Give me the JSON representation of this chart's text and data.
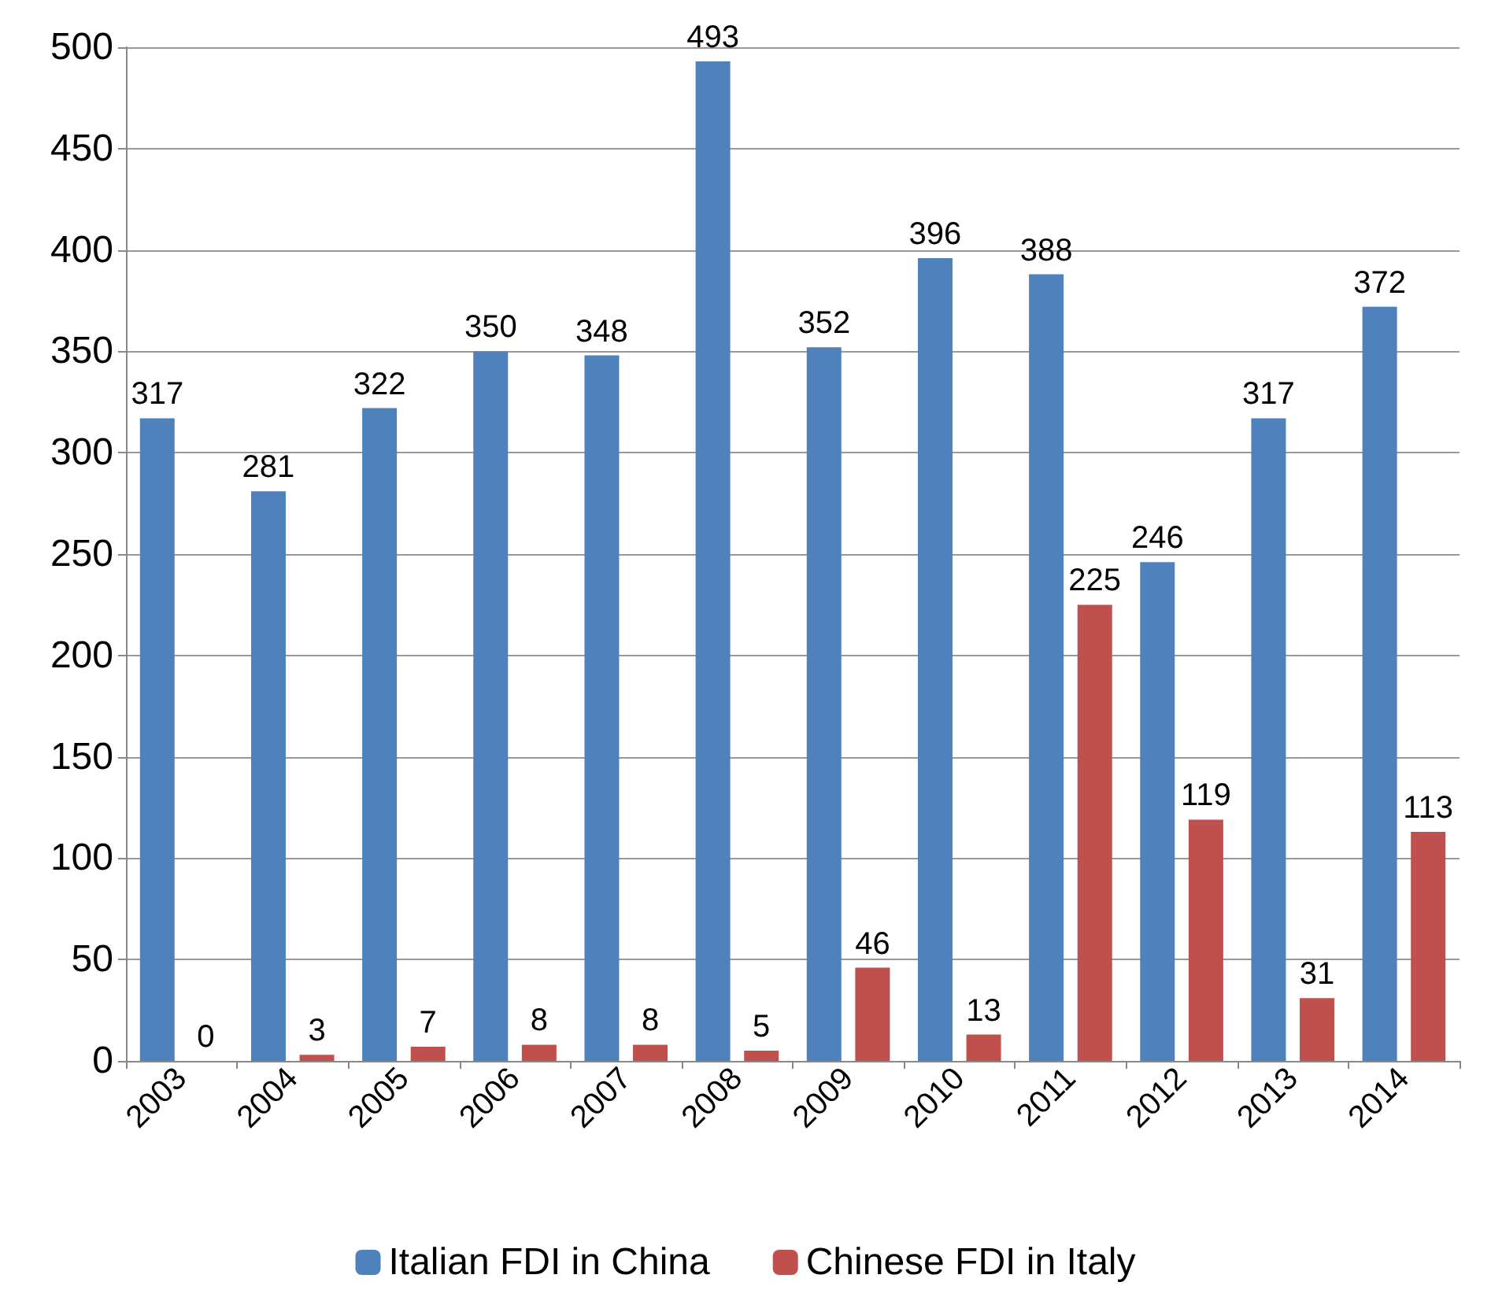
{
  "chart_data": {
    "type": "bar",
    "categories": [
      "2003",
      "2004",
      "2005",
      "2006",
      "2007",
      "2008",
      "2009",
      "2010",
      "2011",
      "2012",
      "2013",
      "2014"
    ],
    "series": [
      {
        "name": "Italian FDI in China",
        "color": "#4f81bd",
        "values": [
          317,
          281,
          322,
          350,
          348,
          493,
          352,
          396,
          388,
          246,
          317,
          372
        ]
      },
      {
        "name": "Chinese FDI in Italy",
        "color": "#c0504d",
        "values": [
          0,
          3,
          7,
          8,
          8,
          5,
          46,
          13,
          225,
          119,
          31,
          113
        ]
      }
    ],
    "ylim": [
      0,
      500
    ],
    "yticks": [
      0,
      50,
      100,
      150,
      200,
      250,
      300,
      350,
      400,
      450,
      500
    ],
    "grid": "y",
    "legend": "bottom",
    "data_labels": true
  }
}
